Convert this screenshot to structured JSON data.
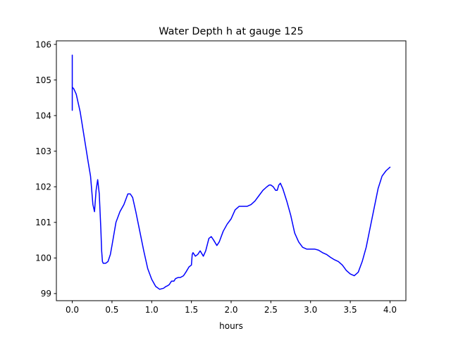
{
  "chart_data": {
    "type": "line",
    "title": "Water Depth h at gauge 125",
    "xlabel": "hours",
    "ylabel": "",
    "xlim": [
      -0.2,
      4.2
    ],
    "ylim": [
      98.8,
      106.1
    ],
    "grid": false,
    "xticks": [
      0.0,
      0.5,
      1.0,
      1.5,
      2.0,
      2.5,
      3.0,
      3.5,
      4.0
    ],
    "xtick_labels": [
      "0.0",
      "0.5",
      "1.0",
      "1.5",
      "2.0",
      "2.5",
      "3.0",
      "3.5",
      "4.0"
    ],
    "yticks": [
      99,
      100,
      101,
      102,
      103,
      104,
      105,
      106
    ],
    "ytick_labels": [
      "99",
      "100",
      "101",
      "102",
      "103",
      "104",
      "105",
      "106"
    ],
    "series": [
      {
        "color": "#0000ff",
        "x": [
          0.0,
          0.0,
          0.0,
          0.0,
          0.02,
          0.05,
          0.1,
          0.15,
          0.2,
          0.23,
          0.26,
          0.28,
          0.3,
          0.32,
          0.34,
          0.36,
          0.37,
          0.38,
          0.39,
          0.4,
          0.42,
          0.45,
          0.48,
          0.5,
          0.55,
          0.6,
          0.65,
          0.7,
          0.73,
          0.76,
          0.8,
          0.85,
          0.9,
          0.95,
          1.0,
          1.05,
          1.1,
          1.15,
          1.18,
          1.2,
          1.22,
          1.25,
          1.28,
          1.3,
          1.33,
          1.36,
          1.4,
          1.43,
          1.47,
          1.5,
          1.51,
          1.52,
          1.55,
          1.58,
          1.61,
          1.65,
          1.68,
          1.72,
          1.75,
          1.78,
          1.82,
          1.85,
          1.9,
          1.95,
          2.0,
          2.05,
          2.1,
          2.15,
          2.2,
          2.25,
          2.3,
          2.35,
          2.4,
          2.45,
          2.48,
          2.5,
          2.53,
          2.56,
          2.58,
          2.6,
          2.62,
          2.65,
          2.7,
          2.75,
          2.8,
          2.85,
          2.9,
          2.95,
          3.0,
          3.05,
          3.1,
          3.15,
          3.2,
          3.25,
          3.3,
          3.35,
          3.4,
          3.45,
          3.5,
          3.55,
          3.6,
          3.65,
          3.7,
          3.75,
          3.8,
          3.85,
          3.9,
          3.95,
          4.0
        ],
        "y": [
          104.15,
          105.7,
          104.9,
          104.8,
          104.75,
          104.6,
          104.1,
          103.4,
          102.7,
          102.3,
          101.5,
          101.3,
          101.9,
          102.2,
          101.8,
          100.8,
          100.2,
          99.9,
          99.85,
          99.85,
          99.85,
          99.9,
          100.1,
          100.35,
          101.0,
          101.3,
          101.5,
          101.8,
          101.8,
          101.7,
          101.3,
          100.75,
          100.2,
          99.7,
          99.4,
          99.2,
          99.12,
          99.15,
          99.2,
          99.22,
          99.25,
          99.35,
          99.35,
          99.42,
          99.45,
          99.45,
          99.5,
          99.6,
          99.75,
          99.8,
          100.1,
          100.15,
          100.05,
          100.1,
          100.2,
          100.05,
          100.2,
          100.55,
          100.6,
          100.5,
          100.35,
          100.45,
          100.75,
          100.95,
          101.1,
          101.35,
          101.45,
          101.45,
          101.45,
          101.5,
          101.6,
          101.75,
          101.9,
          102.0,
          102.05,
          102.05,
          102.0,
          101.9,
          101.9,
          102.05,
          102.1,
          101.95,
          101.6,
          101.2,
          100.7,
          100.45,
          100.3,
          100.25,
          100.25,
          100.25,
          100.22,
          100.15,
          100.1,
          100.02,
          99.95,
          99.9,
          99.8,
          99.65,
          99.55,
          99.5,
          99.6,
          99.9,
          100.3,
          100.85,
          101.4,
          101.95,
          102.3,
          102.45,
          102.55
        ]
      }
    ]
  }
}
